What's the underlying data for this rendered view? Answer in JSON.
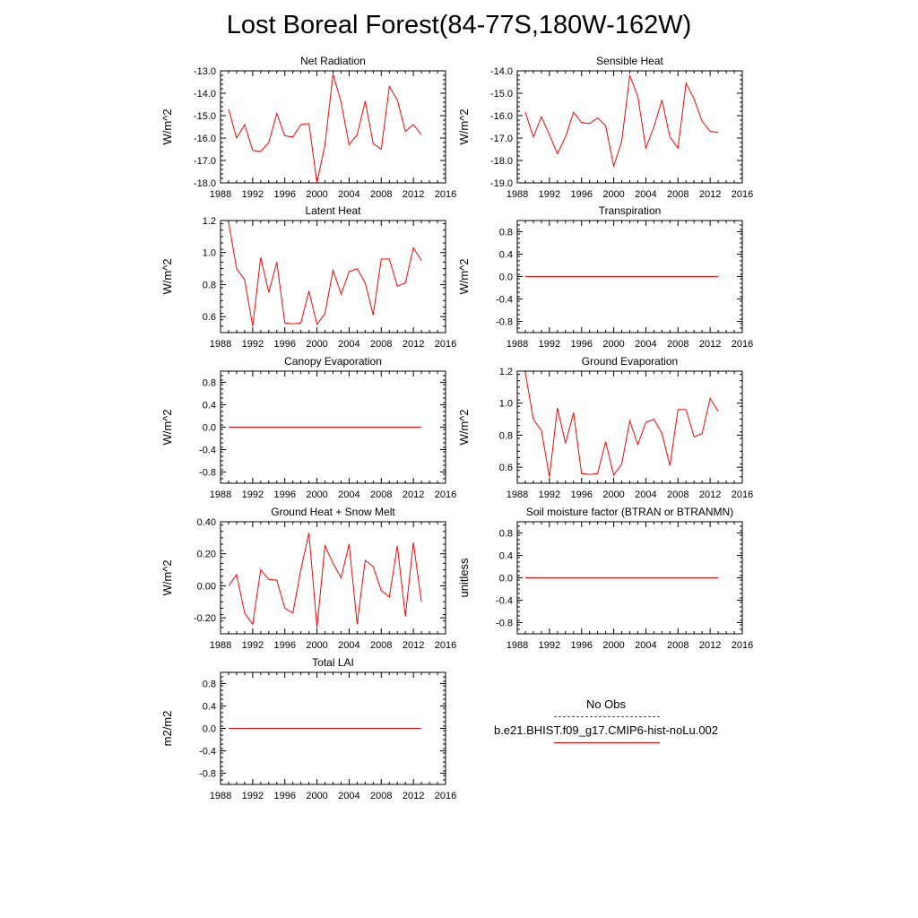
{
  "title": "Lost Boreal Forest(84-77S,180W-162W)",
  "legend": {
    "obs_label": "No Obs",
    "model_label": "b.e21.BHIST.f09_g17.CMIP6-hist-noLu.002",
    "model_color": "#ff0000",
    "obs_color": "#4040a0"
  },
  "chart_data": [
    {
      "type": "line",
      "title": "Net Radiation",
      "ylabel": "W/m^2",
      "xlim": [
        1988,
        2016
      ],
      "ylim": [
        -18.0,
        -13.0
      ],
      "yticks": [
        -18.0,
        -17.0,
        -16.0,
        -15.0,
        -14.0,
        -13.0
      ],
      "ytick_labels": [
        "-18.0",
        "-17.0",
        "-16.0",
        "-15.0",
        "-14.0",
        "-13.0"
      ],
      "xticks": [
        1988,
        1992,
        1996,
        2000,
        2004,
        2008,
        2012,
        2016
      ],
      "x": [
        1989,
        1990,
        1991,
        1992,
        1993,
        1994,
        1995,
        1996,
        1997,
        1998,
        1999,
        2000,
        2001,
        2002,
        2003,
        2004,
        2005,
        2006,
        2007,
        2008,
        2009,
        2010,
        2011,
        2012,
        2013
      ],
      "series": [
        {
          "color": "#ff0000",
          "values": [
            -14.7,
            -16.0,
            -15.4,
            -16.55,
            -16.6,
            -16.2,
            -14.9,
            -15.9,
            -15.95,
            -15.4,
            -15.35,
            -18.0,
            -16.3,
            -13.15,
            -14.4,
            -16.3,
            -15.85,
            -14.35,
            -16.25,
            -16.5,
            -13.7,
            -14.3,
            -15.7,
            -15.4,
            -15.85
          ]
        }
      ]
    },
    {
      "type": "line",
      "title": "Sensible Heat",
      "ylabel": "W/m^2",
      "xlim": [
        1988,
        2016
      ],
      "ylim": [
        -19.0,
        -14.0
      ],
      "yticks": [
        -19.0,
        -18.0,
        -17.0,
        -16.0,
        -15.0,
        -14.0
      ],
      "ytick_labels": [
        "-19.0",
        "-18.0",
        "-17.0",
        "-16.0",
        "-15.0",
        "-14.0"
      ],
      "xticks": [
        1988,
        1992,
        1996,
        2000,
        2004,
        2008,
        2012,
        2016
      ],
      "x": [
        1989,
        1990,
        1991,
        1992,
        1993,
        1994,
        1995,
        1996,
        1997,
        1998,
        1999,
        2000,
        2001,
        2002,
        2003,
        2004,
        2005,
        2006,
        2007,
        2008,
        2009,
        2010,
        2011,
        2012,
        2013
      ],
      "series": [
        {
          "color": "#ff0000",
          "values": [
            -15.85,
            -16.95,
            -16.05,
            -16.85,
            -17.7,
            -16.95,
            -15.85,
            -16.3,
            -16.35,
            -16.1,
            -16.45,
            -18.25,
            -17.15,
            -14.2,
            -15.15,
            -17.45,
            -16.5,
            -15.3,
            -16.95,
            -17.45,
            -14.55,
            -15.25,
            -16.25,
            -16.7,
            -16.75
          ]
        }
      ]
    },
    {
      "type": "line",
      "title": "Latent Heat",
      "ylabel": "W/m^2",
      "xlim": [
        1988,
        2016
      ],
      "ylim": [
        0.5,
        1.2
      ],
      "yticks": [
        0.6,
        0.8,
        1.0,
        1.2
      ],
      "ytick_labels": [
        "0.6",
        "0.8",
        "1.0",
        "1.2"
      ],
      "xticks": [
        1988,
        1992,
        1996,
        2000,
        2004,
        2008,
        2012,
        2016
      ],
      "x": [
        1989,
        1990,
        1991,
        1992,
        1993,
        1994,
        1995,
        1996,
        1997,
        1998,
        1999,
        2000,
        2001,
        2002,
        2003,
        2004,
        2005,
        2006,
        2007,
        2008,
        2009,
        2010,
        2011,
        2012,
        2013
      ],
      "series": [
        {
          "color": "#ff0000",
          "values": [
            1.19,
            0.9,
            0.83,
            0.54,
            0.97,
            0.75,
            0.94,
            0.56,
            0.555,
            0.56,
            0.76,
            0.55,
            0.62,
            0.89,
            0.74,
            0.88,
            0.9,
            0.81,
            0.61,
            0.96,
            0.96,
            0.79,
            0.81,
            1.03,
            0.95
          ]
        }
      ]
    },
    {
      "type": "line",
      "title": "Transpiration",
      "ylabel": "W/m^2",
      "xlim": [
        1988,
        2016
      ],
      "ylim": [
        -1.0,
        1.0
      ],
      "yticks": [
        -0.8,
        -0.4,
        0.0,
        0.4,
        0.8
      ],
      "ytick_labels": [
        "-0.8",
        "-0.4",
        "0.0",
        "0.4",
        "0.8"
      ],
      "xticks": [
        1988,
        1992,
        1996,
        2000,
        2004,
        2008,
        2012,
        2016
      ],
      "x": [
        1989,
        1990,
        1991,
        1992,
        1993,
        1994,
        1995,
        1996,
        1997,
        1998,
        1999,
        2000,
        2001,
        2002,
        2003,
        2004,
        2005,
        2006,
        2007,
        2008,
        2009,
        2010,
        2011,
        2012,
        2013
      ],
      "series": [
        {
          "color": "#ff0000",
          "values": [
            0,
            0,
            0,
            0,
            0,
            0,
            0,
            0,
            0,
            0,
            0,
            0,
            0,
            0,
            0,
            0,
            0,
            0,
            0,
            0,
            0,
            0,
            0,
            0,
            0
          ]
        }
      ]
    },
    {
      "type": "line",
      "title": "Canopy Evaporation",
      "ylabel": "W/m^2",
      "xlim": [
        1988,
        2016
      ],
      "ylim": [
        -1.0,
        1.0
      ],
      "yticks": [
        -0.8,
        -0.4,
        0.0,
        0.4,
        0.8
      ],
      "ytick_labels": [
        "-0.8",
        "-0.4",
        "0.0",
        "0.4",
        "0.8"
      ],
      "xticks": [
        1988,
        1992,
        1996,
        2000,
        2004,
        2008,
        2012,
        2016
      ],
      "x": [
        1989,
        1990,
        1991,
        1992,
        1993,
        1994,
        1995,
        1996,
        1997,
        1998,
        1999,
        2000,
        2001,
        2002,
        2003,
        2004,
        2005,
        2006,
        2007,
        2008,
        2009,
        2010,
        2011,
        2012,
        2013
      ],
      "series": [
        {
          "color": "#ff0000",
          "values": [
            0,
            0,
            0,
            0,
            0,
            0,
            0,
            0,
            0,
            0,
            0,
            0,
            0,
            0,
            0,
            0,
            0,
            0,
            0,
            0,
            0,
            0,
            0,
            0,
            0
          ]
        }
      ]
    },
    {
      "type": "line",
      "title": "Ground Evaporation",
      "ylabel": "W/m^2",
      "xlim": [
        1988,
        2016
      ],
      "ylim": [
        0.5,
        1.2
      ],
      "yticks": [
        0.6,
        0.8,
        1.0,
        1.2
      ],
      "ytick_labels": [
        "0.6",
        "0.8",
        "1.0",
        "1.2"
      ],
      "xticks": [
        1988,
        1992,
        1996,
        2000,
        2004,
        2008,
        2012,
        2016
      ],
      "x": [
        1989,
        1990,
        1991,
        1992,
        1993,
        1994,
        1995,
        1996,
        1997,
        1998,
        1999,
        2000,
        2001,
        2002,
        2003,
        2004,
        2005,
        2006,
        2007,
        2008,
        2009,
        2010,
        2011,
        2012,
        2013
      ],
      "series": [
        {
          "color": "#ff0000",
          "values": [
            1.19,
            0.9,
            0.83,
            0.54,
            0.97,
            0.75,
            0.94,
            0.56,
            0.555,
            0.56,
            0.76,
            0.55,
            0.62,
            0.89,
            0.74,
            0.88,
            0.9,
            0.81,
            0.61,
            0.96,
            0.96,
            0.79,
            0.81,
            1.03,
            0.95
          ]
        }
      ]
    },
    {
      "type": "line",
      "title": "Ground Heat + Snow Melt",
      "ylabel": "W/m^2",
      "xlim": [
        1988,
        2016
      ],
      "ylim": [
        -0.3,
        0.4
      ],
      "yticks": [
        -0.2,
        0.0,
        0.2,
        0.4
      ],
      "ytick_labels": [
        "-0.20",
        "0.00",
        "0.20",
        "0.40"
      ],
      "xticks": [
        1988,
        1992,
        1996,
        2000,
        2004,
        2008,
        2012,
        2016
      ],
      "x": [
        1989,
        1990,
        1991,
        1992,
        1993,
        1994,
        1995,
        1996,
        1997,
        1998,
        1999,
        2000,
        2001,
        2002,
        2003,
        2004,
        2005,
        2006,
        2007,
        2008,
        2009,
        2010,
        2011,
        2012,
        2013
      ],
      "series": [
        {
          "color": "#ff0000",
          "values": [
            0.0,
            0.07,
            -0.17,
            -0.24,
            0.1,
            0.04,
            0.035,
            -0.14,
            -0.17,
            0.1,
            0.33,
            -0.26,
            0.25,
            0.14,
            0.05,
            0.26,
            -0.24,
            0.16,
            0.12,
            -0.03,
            -0.07,
            0.25,
            -0.19,
            0.27,
            -0.1
          ]
        }
      ]
    },
    {
      "type": "line",
      "title": "Soil moisture factor (BTRAN or BTRANMN)",
      "ylabel": "unitless",
      "xlim": [
        1988,
        2016
      ],
      "ylim": [
        -1.0,
        1.0
      ],
      "yticks": [
        -0.8,
        -0.4,
        0.0,
        0.4,
        0.8
      ],
      "ytick_labels": [
        "-0.8",
        "-0.4",
        "0.0",
        "0.4",
        "0.8"
      ],
      "xticks": [
        1988,
        1992,
        1996,
        2000,
        2004,
        2008,
        2012,
        2016
      ],
      "x": [
        1989,
        1990,
        1991,
        1992,
        1993,
        1994,
        1995,
        1996,
        1997,
        1998,
        1999,
        2000,
        2001,
        2002,
        2003,
        2004,
        2005,
        2006,
        2007,
        2008,
        2009,
        2010,
        2011,
        2012,
        2013
      ],
      "series": [
        {
          "color": "#ff0000",
          "values": [
            0,
            0,
            0,
            0,
            0,
            0,
            0,
            0,
            0,
            0,
            0,
            0,
            0,
            0,
            0,
            0,
            0,
            0,
            0,
            0,
            0,
            0,
            0,
            0,
            0
          ]
        }
      ]
    },
    {
      "type": "line",
      "title": "Total LAI",
      "ylabel": "m2/m2",
      "xlim": [
        1988,
        2016
      ],
      "ylim": [
        -1.0,
        1.0
      ],
      "yticks": [
        -0.8,
        -0.4,
        0.0,
        0.4,
        0.8
      ],
      "ytick_labels": [
        "-0.8",
        "-0.4",
        "0.0",
        "0.4",
        "0.8"
      ],
      "xticks": [
        1988,
        1992,
        1996,
        2000,
        2004,
        2008,
        2012,
        2016
      ],
      "x": [
        1989,
        1990,
        1991,
        1992,
        1993,
        1994,
        1995,
        1996,
        1997,
        1998,
        1999,
        2000,
        2001,
        2002,
        2003,
        2004,
        2005,
        2006,
        2007,
        2008,
        2009,
        2010,
        2011,
        2012,
        2013
      ],
      "series": [
        {
          "color": "#ff0000",
          "values": [
            0,
            0,
            0,
            0,
            0,
            0,
            0,
            0,
            0,
            0,
            0,
            0,
            0,
            0,
            0,
            0,
            0,
            0,
            0,
            0,
            0,
            0,
            0,
            0,
            0
          ]
        }
      ]
    }
  ]
}
